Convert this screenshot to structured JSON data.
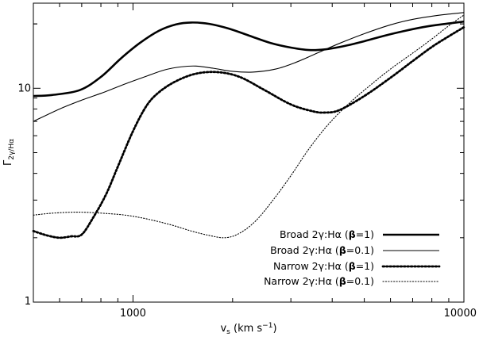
{
  "chart_data": {
    "type": "line",
    "xlabel_main": "v",
    "xlabel_sub": "s",
    "xlabel_unit": " (km s",
    "xlabel_exp": "−1",
    "xlabel_close": ")",
    "ylabel_main": "Γ",
    "ylabel_sub": "2γ/Hα",
    "x_scale": "log",
    "y_scale": "log",
    "xlim": [
      500,
      10000
    ],
    "ylim": [
      1,
      25
    ],
    "x_ticks": [
      {
        "value": 1000,
        "label": "1000"
      },
      {
        "value": 10000,
        "label": "10000"
      }
    ],
    "y_ticks": [
      {
        "value": 1,
        "label": "1"
      },
      {
        "value": 10,
        "label": "10"
      }
    ],
    "legend_position": "bottom-right",
    "series": [
      {
        "name": "Broad 2γ:Hα (β=1)",
        "label_pre": "Broad 2",
        "label_gamma": "γ",
        "label_mid": ":H",
        "label_alpha": "α",
        "label_open": " (",
        "label_beta": "β",
        "label_eq": "=1)",
        "style": "thick-solid",
        "x": [
          500,
          570,
          690,
          800,
          920,
          1050,
          1200,
          1350,
          1500,
          1700,
          1950,
          2250,
          2600,
          3000,
          3400,
          3800,
          4300,
          5000,
          6000,
          7500,
          9000,
          10000
        ],
        "y": [
          9.2,
          9.3,
          9.8,
          11.3,
          13.8,
          16.3,
          18.6,
          19.9,
          20.3,
          20.0,
          19.0,
          17.6,
          16.3,
          15.5,
          15.1,
          15.2,
          15.7,
          16.6,
          17.9,
          19.3,
          20.1,
          20.5
        ]
      },
      {
        "name": "Broad 2γ:Hα (β=0.1)",
        "label_pre": "Broad 2",
        "label_gamma": "γ",
        "label_mid": ":H",
        "label_alpha": "α",
        "label_open": " (",
        "label_beta": "β",
        "label_eq": "=0.1)",
        "style": "thin-solid",
        "x": [
          500,
          600,
          700,
          820,
          950,
          1100,
          1250,
          1400,
          1550,
          1750,
          2000,
          2300,
          2700,
          3100,
          3600,
          4200,
          5000,
          6000,
          7000,
          8500,
          10000
        ],
        "y": [
          7.0,
          8.0,
          8.8,
          9.6,
          10.5,
          11.4,
          12.2,
          12.6,
          12.7,
          12.4,
          12.0,
          11.9,
          12.3,
          13.2,
          14.6,
          16.2,
          18.0,
          19.8,
          21.0,
          22.0,
          22.6
        ]
      },
      {
        "name": "Narrow 2γ:Hα (β=1)",
        "label_pre": "Narrow 2",
        "label_gamma": "γ",
        "label_mid": ":H",
        "label_alpha": "α",
        "label_open": " (",
        "label_beta": "β",
        "label_eq": "=1)",
        "style": "thick-dotted",
        "x": [
          500,
          550,
          600,
          650,
          700,
          760,
          830,
          900,
          1000,
          1100,
          1200,
          1350,
          1550,
          1800,
          2100,
          2500,
          3000,
          3500,
          3800,
          4200,
          5000,
          6000,
          7000,
          8000,
          9000,
          10000
        ],
        "y": [
          2.15,
          2.05,
          2.0,
          2.03,
          2.07,
          2.5,
          3.2,
          4.3,
          6.3,
          8.3,
          9.6,
          10.8,
          11.7,
          11.9,
          11.3,
          9.8,
          8.4,
          7.8,
          7.7,
          7.9,
          9.2,
          11.2,
          13.4,
          15.6,
          17.5,
          19.3
        ]
      },
      {
        "name": "Narrow 2γ:Hα (β=0.1)",
        "label_pre": "Narrow 2",
        "label_gamma": "γ",
        "label_mid": ":H",
        "label_alpha": "α",
        "label_open": " (",
        "label_beta": "β",
        "label_eq": "=0.1)",
        "style": "thin-dotted",
        "x": [
          500,
          560,
          640,
          720,
          820,
          950,
          1100,
          1300,
          1500,
          1700,
          1900,
          2100,
          2350,
          2650,
          3000,
          3400,
          3900,
          4500,
          5200,
          6000,
          7000,
          8000,
          9000,
          10000
        ],
        "y": [
          2.55,
          2.6,
          2.63,
          2.63,
          2.6,
          2.55,
          2.45,
          2.3,
          2.15,
          2.05,
          2.0,
          2.1,
          2.4,
          3.0,
          3.9,
          5.2,
          6.8,
          8.5,
          10.3,
          12.3,
          14.6,
          17.0,
          19.6,
          22.0
        ]
      }
    ]
  }
}
